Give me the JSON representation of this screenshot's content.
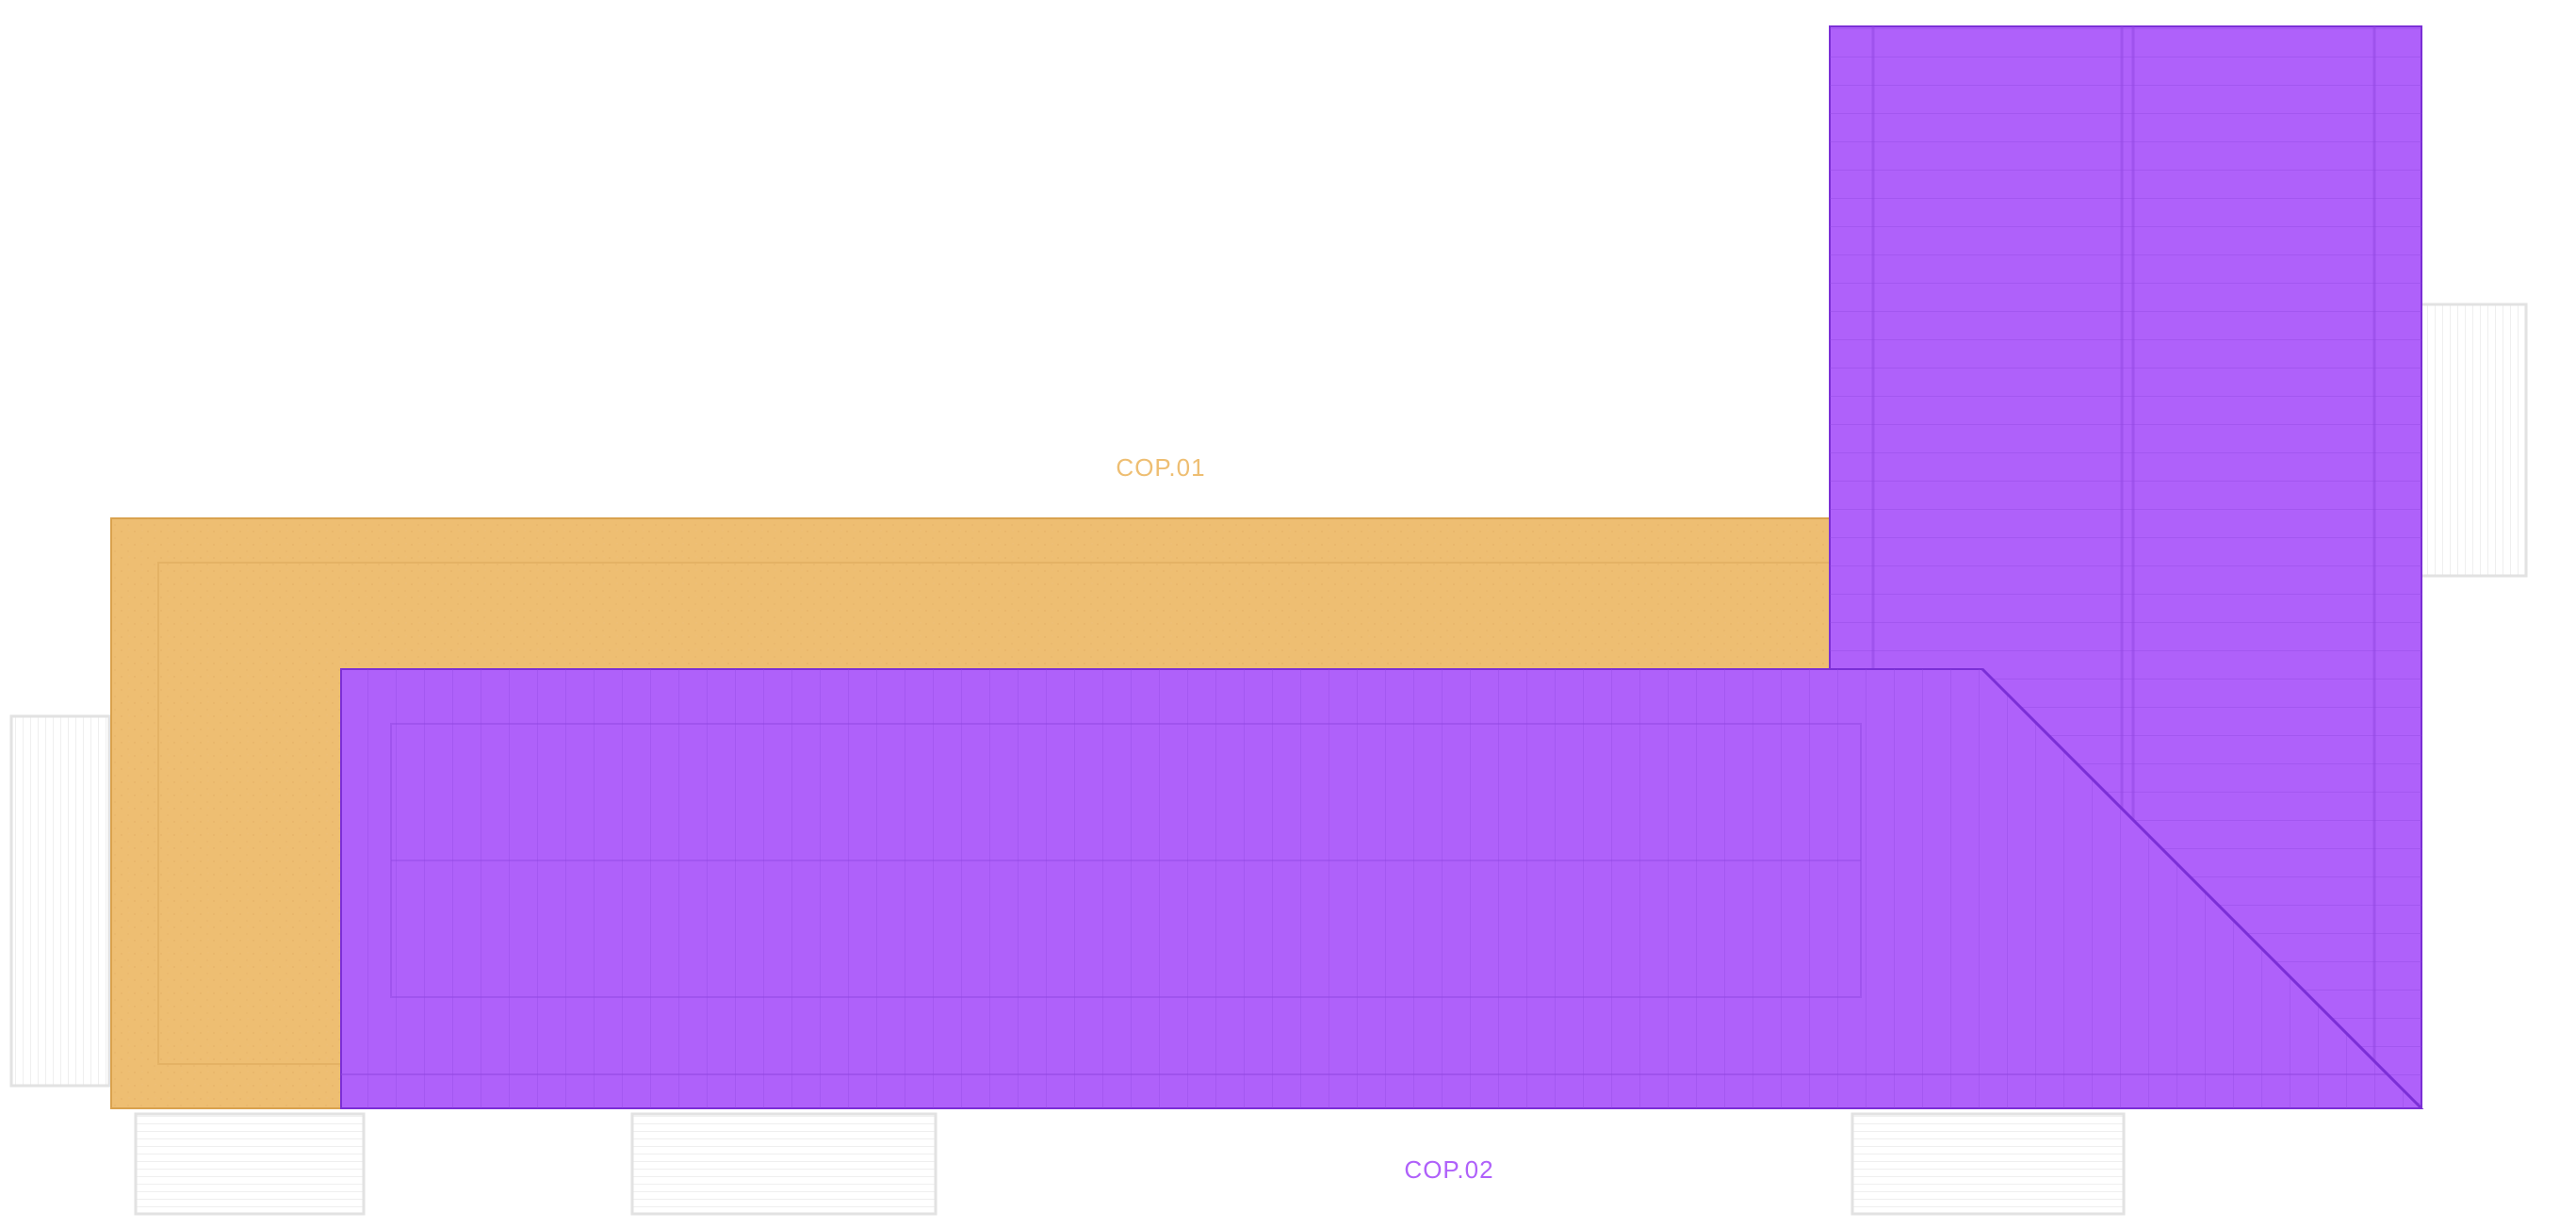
{
  "plan": {
    "zones": [
      {
        "id": "cop01",
        "label": "COP.01",
        "color": "#EEBE72",
        "edge": "#D9A24E"
      },
      {
        "id": "cop02",
        "label": "COP.02",
        "color": "#AF61FA",
        "edge": "#7B2FD6"
      }
    ],
    "stair_color": "#E2E2E2"
  }
}
